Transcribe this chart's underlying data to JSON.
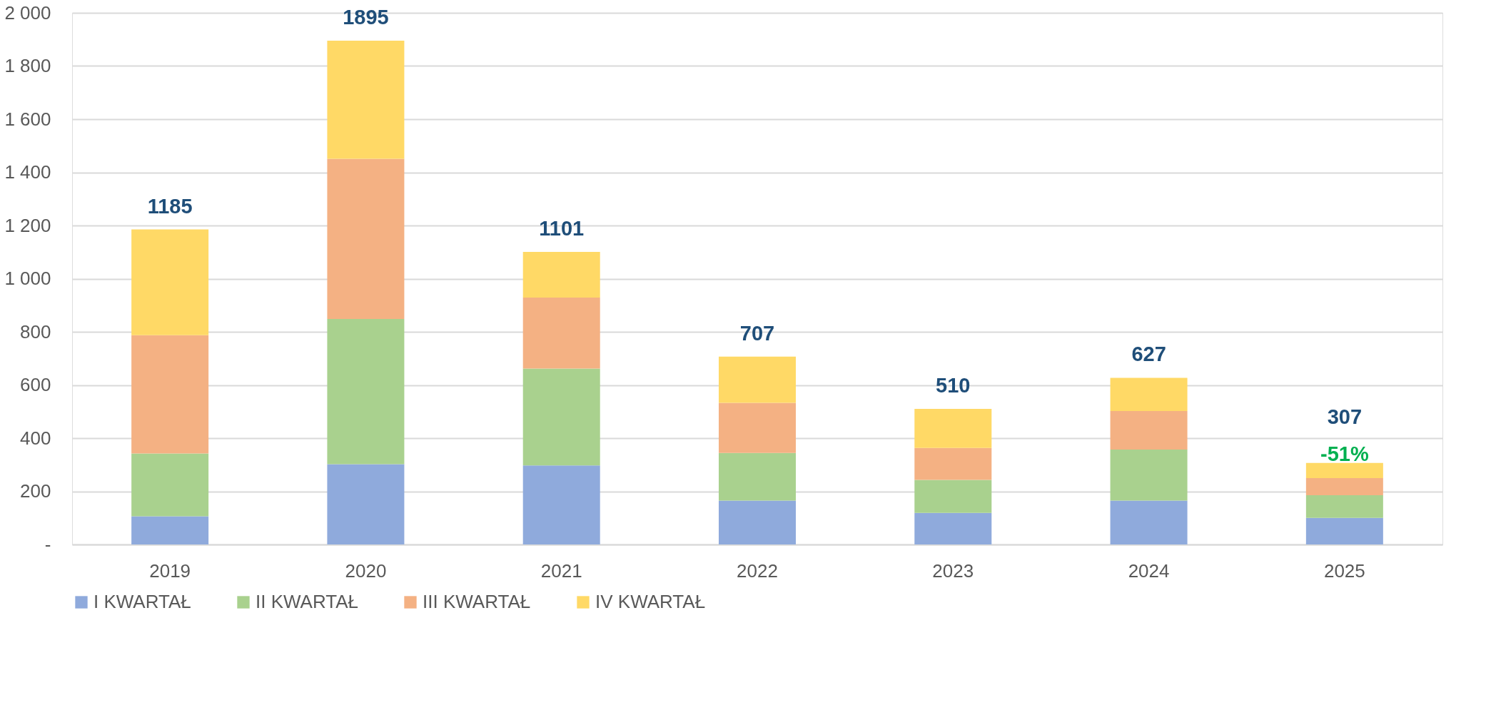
{
  "chart_data": {
    "type": "bar",
    "stacked": true,
    "categories": [
      "2019",
      "2020",
      "2021",
      "2022",
      "2023",
      "2024",
      "2025"
    ],
    "series": [
      {
        "name": "I KWARTAŁ",
        "color": "#8faadc",
        "values": [
          106,
          302,
          297,
          165,
          119,
          165,
          100
        ]
      },
      {
        "name": "II KWARTAŁ",
        "color": "#a9d18e",
        "values": [
          236,
          546,
          365,
          179,
          124,
          192,
          85
        ]
      },
      {
        "name": "III KWARTAŁ",
        "color": "#f4b183",
        "values": [
          445,
          603,
          267,
          189,
          120,
          145,
          65
        ]
      },
      {
        "name": "IV KWARTAŁ",
        "color": "#ffd966",
        "values": [
          398,
          444,
          172,
          174,
          147,
          125,
          57
        ]
      }
    ],
    "totals": [
      "1185",
      "1895",
      "1101",
      "707",
      "510",
      "627",
      "307"
    ],
    "annotations": [
      {
        "text": "-51%",
        "x": "2025",
        "y": 307
      }
    ],
    "ylim": [
      0,
      2000
    ],
    "yticks": [
      {
        "value": 0,
        "label": "-"
      },
      200,
      400,
      600,
      800,
      {
        "value": 1000,
        "label": "1 000"
      },
      {
        "value": 1200,
        "label": "1 200"
      },
      {
        "value": 1400,
        "label": "1 400"
      },
      {
        "value": 1600,
        "label": "1 600"
      },
      {
        "value": 1800,
        "label": "1 800"
      },
      {
        "value": 2000,
        "label": "2 000"
      }
    ],
    "grid": "y",
    "legend": "bottom"
  }
}
